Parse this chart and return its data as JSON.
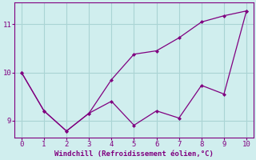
{
  "line1_x": [
    0,
    1,
    2,
    3,
    4,
    5,
    6,
    7,
    8,
    9,
    10
  ],
  "line1_y": [
    10.0,
    9.2,
    8.78,
    9.15,
    9.4,
    8.9,
    9.2,
    9.05,
    9.73,
    9.55,
    11.28
  ],
  "line2_x": [
    0,
    1,
    2,
    3,
    4,
    5,
    6,
    7,
    8,
    9,
    10
  ],
  "line2_y": [
    10.0,
    9.2,
    8.78,
    9.15,
    9.85,
    10.38,
    10.45,
    10.72,
    11.05,
    11.18,
    11.28
  ],
  "line_color": "#800080",
  "bg_color": "#d0eeee",
  "grid_color": "#aad4d4",
  "xlabel": "Windchill (Refroidissement éolien,°C)",
  "xlabel_color": "#800080",
  "tick_color": "#800080",
  "xlim": [
    -0.3,
    10.3
  ],
  "ylim": [
    8.65,
    11.45
  ],
  "yticks": [
    9,
    10,
    11
  ],
  "xticks": [
    0,
    1,
    2,
    3,
    4,
    5,
    6,
    7,
    8,
    9,
    10
  ]
}
